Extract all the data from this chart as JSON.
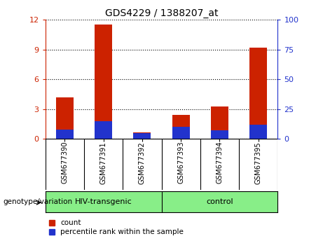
{
  "title": "GDS4229 / 1388207_at",
  "samples": [
    "GSM677390",
    "GSM677391",
    "GSM677392",
    "GSM677393",
    "GSM677394",
    "GSM677395"
  ],
  "count_values": [
    4.2,
    11.5,
    0.65,
    2.4,
    3.3,
    9.2
  ],
  "percentile_values_pct": [
    8,
    15,
    5,
    10,
    7,
    12
  ],
  "ylim_left": [
    0,
    12
  ],
  "ylim_right": [
    0,
    100
  ],
  "yticks_left": [
    0,
    3,
    6,
    9,
    12
  ],
  "yticks_right": [
    0,
    25,
    50,
    75,
    100
  ],
  "groups": [
    {
      "label": "HIV-transgenic",
      "indices": [
        0,
        1,
        2
      ]
    },
    {
      "label": "control",
      "indices": [
        3,
        4,
        5
      ]
    }
  ],
  "group_label": "genotype/variation",
  "bar_color_red": "#CC2200",
  "bar_color_blue": "#2233CC",
  "tick_color_left": "#CC2200",
  "tick_color_right": "#2233CC",
  "bg_color_sample": "#CCCCCC",
  "bg_color_group": "#88EE88",
  "legend_count": "count",
  "legend_percentile": "percentile rank within the sample",
  "title_fontsize": 10,
  "bar_width": 0.45
}
